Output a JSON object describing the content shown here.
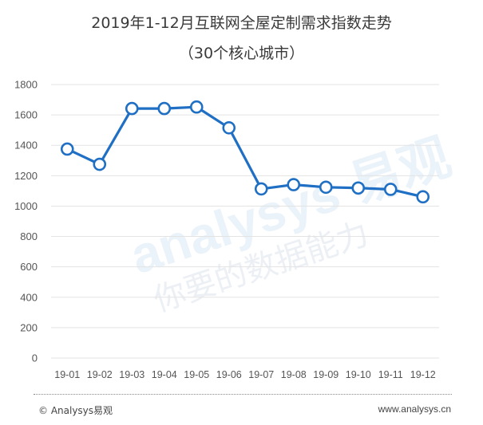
{
  "title": {
    "line1": "2019年1-12月互联网全屋定制需求指数走势",
    "line2": "（30个核心城市）"
  },
  "watermark": {
    "brand": "analysys 易观",
    "slogan": "你要的数据能力"
  },
  "footer": {
    "left": "© Analysys易观",
    "right": "www.analysys.cn"
  },
  "colors": {
    "line": "#1f6fc4",
    "grid": "#e3e3e3",
    "marker_fill": "#ffffff"
  },
  "chart_data": {
    "type": "line",
    "title": "2019年1-12月互联网全屋定制需求指数走势（30个核心城市）",
    "xlabel": "",
    "ylabel": "",
    "categories": [
      "19-01",
      "19-02",
      "19-03",
      "19-04",
      "19-05",
      "19-06",
      "19-07",
      "19-08",
      "19-09",
      "19-10",
      "19-11",
      "19-12"
    ],
    "series": [
      {
        "name": "互联网全屋定制需求指数",
        "values": [
          1375,
          1275,
          1642,
          1642,
          1652,
          1515,
          1113,
          1141,
          1124,
          1119,
          1110,
          1061
        ]
      }
    ],
    "ylim": [
      0,
      1800
    ],
    "yticks": [
      0,
      200,
      400,
      600,
      800,
      1000,
      1200,
      1400,
      1600,
      1800
    ],
    "grid": true,
    "legend": "none",
    "markers": "hollow-circle"
  }
}
